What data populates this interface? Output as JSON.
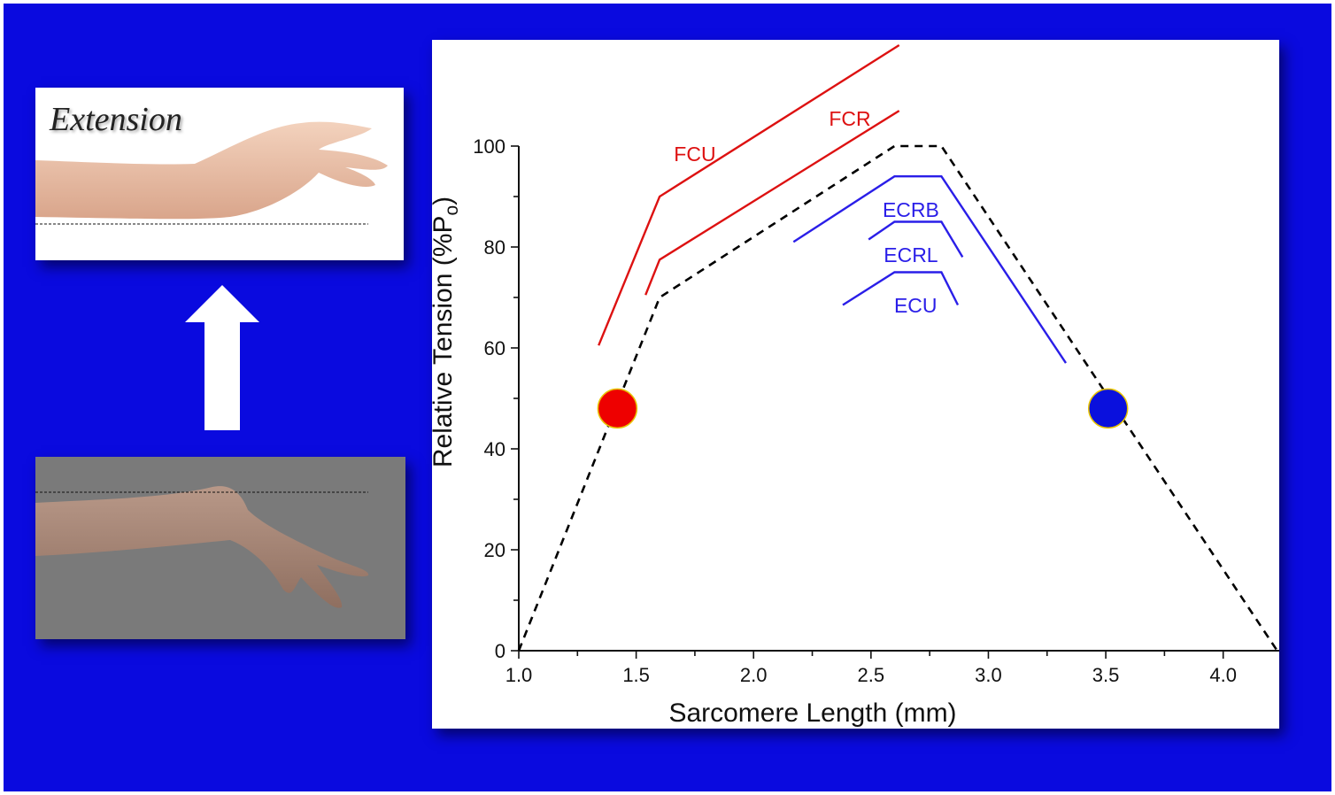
{
  "left_panel": {
    "top_image_label": "Extension",
    "top_image_icon": "wrist-extension-photo",
    "bottom_image_icon": "wrist-flexion-photo",
    "arrow_icon": "up-arrow-icon"
  },
  "chart_data": {
    "type": "line",
    "title": "",
    "xlabel": "Sarcomere Length (mm)",
    "ylabel": "Relative Tension (%P",
    "ylabel_sub": "o",
    "ylabel_end": ")",
    "xlim": [
      1.0,
      4.25
    ],
    "ylim": [
      0,
      100
    ],
    "x_ticks": [
      1.0,
      1.5,
      2.0,
      2.5,
      3.0,
      3.5,
      4.0
    ],
    "x_tick_labels": [
      "1.0",
      "1.5",
      "2.0",
      "2.5",
      "3.0",
      "3.5",
      "4.0"
    ],
    "y_ticks": [
      0,
      20,
      40,
      60,
      80,
      100
    ],
    "y_tick_labels": [
      "0",
      "20",
      "40",
      "60",
      "80",
      "100"
    ],
    "grid": false,
    "series": [
      {
        "name": "",
        "color": "#000000",
        "style": "dashed",
        "points": [
          [
            1.0,
            0
          ],
          [
            1.6,
            70
          ],
          [
            2.6,
            100
          ],
          [
            2.8,
            100
          ],
          [
            4.23,
            0
          ]
        ]
      },
      {
        "name": "FCU",
        "color": "#dd1111",
        "style": "solid",
        "points": [
          [
            1.34,
            60.5
          ],
          [
            1.6,
            90
          ],
          [
            2.62,
            120
          ]
        ]
      },
      {
        "name": "FCR",
        "color": "#dd1111",
        "style": "solid",
        "points": [
          [
            1.54,
            70.5
          ],
          [
            1.6,
            77.5
          ],
          [
            2.62,
            107
          ]
        ]
      },
      {
        "name": "ECRB",
        "color": "#2a1ee8",
        "style": "solid",
        "points": [
          [
            2.17,
            81
          ],
          [
            2.6,
            94
          ],
          [
            2.8,
            94
          ],
          [
            3.33,
            57
          ]
        ]
      },
      {
        "name": "ECRL",
        "color": "#2a1ee8",
        "style": "solid",
        "points": [
          [
            2.49,
            81.5
          ],
          [
            2.6,
            85
          ],
          [
            2.8,
            85
          ],
          [
            2.89,
            78
          ]
        ]
      },
      {
        "name": "ECU",
        "color": "#2a1ee8",
        "style": "solid",
        "points": [
          [
            2.38,
            68.5
          ],
          [
            2.6,
            75
          ],
          [
            2.8,
            75
          ],
          [
            2.87,
            68.5
          ]
        ]
      }
    ],
    "series_labels": [
      {
        "text": "FCU",
        "x": 1.75,
        "y": 97,
        "color": "#dd1111"
      },
      {
        "text": "FCR",
        "x": 2.41,
        "y": 104,
        "color": "#dd1111"
      },
      {
        "text": "ECRB",
        "x": 2.67,
        "y": 86,
        "color": "#2a1ee8"
      },
      {
        "text": "ECRL",
        "x": 2.67,
        "y": 77,
        "color": "#2a1ee8"
      },
      {
        "text": "ECU",
        "x": 2.69,
        "y": 67,
        "color": "#2a1ee8"
      }
    ],
    "markers": [
      {
        "x": 1.42,
        "y": 48,
        "color": "#ee0000",
        "edge": "#e8c400"
      },
      {
        "x": 3.51,
        "y": 48,
        "color": "#0a10dd",
        "edge": "#e8c400"
      }
    ]
  }
}
